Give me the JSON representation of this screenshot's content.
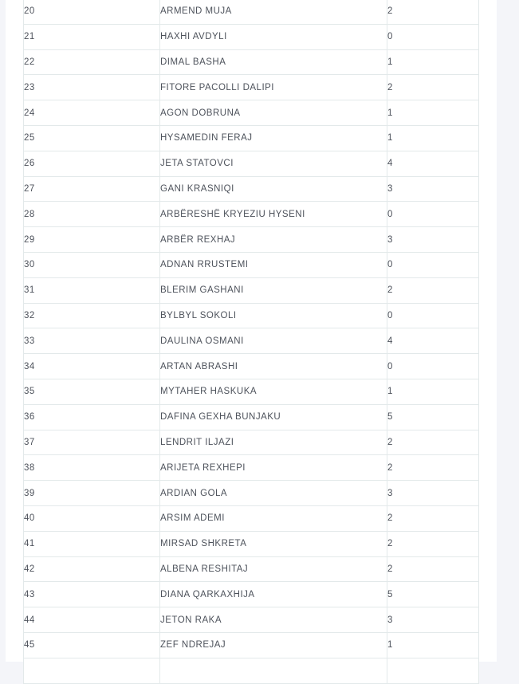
{
  "page": {
    "background_color": "#f4f5f9",
    "card_background": "#ffffff",
    "border_color": "#e3e9ea",
    "text_color": "#4d525b"
  },
  "table": {
    "visible_row_range": "20-45",
    "rows": [
      {
        "no": "20",
        "name": "ARMEND MUJA",
        "value": "2"
      },
      {
        "no": "21",
        "name": "HAXHI AVDYLI",
        "value": "0"
      },
      {
        "no": "22",
        "name": "DIMAL BASHA",
        "value": "1"
      },
      {
        "no": "23",
        "name": "FITORE PACOLLI DALIPI",
        "value": "2"
      },
      {
        "no": "24",
        "name": "AGON DOBRUNA",
        "value": "1"
      },
      {
        "no": "25",
        "name": "HYSAMEDIN FERAJ",
        "value": "1"
      },
      {
        "no": "26",
        "name": "JETA STATOVCI",
        "value": "4"
      },
      {
        "no": "27",
        "name": "GANI KRASNIQI",
        "value": "3"
      },
      {
        "no": "28",
        "name": "ARBËRESHË KRYEZIU HYSENI",
        "value": "0"
      },
      {
        "no": "29",
        "name": "ARBËR REXHAJ",
        "value": "3"
      },
      {
        "no": "30",
        "name": "ADNAN RRUSTEMI",
        "value": "0"
      },
      {
        "no": "31",
        "name": "BLERIM GASHANI",
        "value": "2"
      },
      {
        "no": "32",
        "name": "BYLBYL SOKOLI",
        "value": "0"
      },
      {
        "no": "33",
        "name": "DAULINA OSMANI",
        "value": "4"
      },
      {
        "no": "34",
        "name": "ARTAN ABRASHI",
        "value": "0"
      },
      {
        "no": "35",
        "name": "MYTAHER HASKUKA",
        "value": "1"
      },
      {
        "no": "36",
        "name": "DAFINA GEXHA BUNJAKU",
        "value": "5"
      },
      {
        "no": "37",
        "name": "LENDRIT ILJAZI",
        "value": "2"
      },
      {
        "no": "38",
        "name": "ARIJETA REXHEPI",
        "value": "2"
      },
      {
        "no": "39",
        "name": "ARDIAN GOLA",
        "value": "3"
      },
      {
        "no": "40",
        "name": "ARSIM ADEMI",
        "value": "2"
      },
      {
        "no": "41",
        "name": "MIRSAD SHKRETA",
        "value": "2"
      },
      {
        "no": "42",
        "name": "ALBENA RESHITAJ",
        "value": "2"
      },
      {
        "no": "43",
        "name": "DIANA QARKAXHIJA",
        "value": "5"
      },
      {
        "no": "44",
        "name": "JETON RAKA",
        "value": "3"
      },
      {
        "no": "45",
        "name": "ZEF NDREJAJ",
        "value": "1"
      }
    ]
  }
}
